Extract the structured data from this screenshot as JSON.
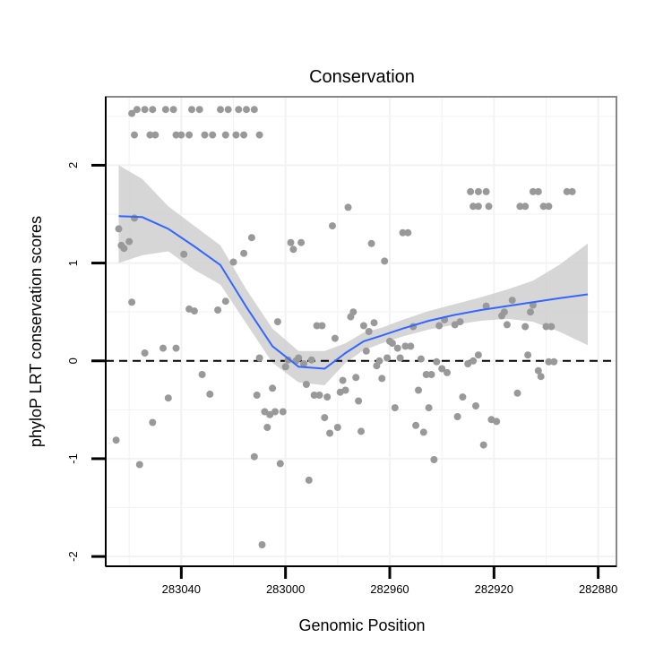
{
  "chart_data": {
    "type": "scatter",
    "title": "Conservation",
    "xlabel": "Genomic Position",
    "ylabel": "phyloP LRT conservation scores",
    "x_reversed": true,
    "xlim": [
      283069,
      282873
    ],
    "ylim": [
      -2.1,
      2.7
    ],
    "xticks": [
      283040,
      283000,
      282960,
      282920,
      282880
    ],
    "yticks": [
      -2,
      -1,
      0,
      1,
      2
    ],
    "grid": true,
    "reference_line": {
      "y": 0,
      "style": "dashed"
    },
    "colors": {
      "points": "#999999",
      "smooth_line": "#3366ff",
      "ribbon": "#cccccc",
      "grid": "#f2f2f2",
      "panel_border": "#888888",
      "axis": "#000000"
    },
    "smooth": {
      "x": [
        283064,
        283055,
        283045,
        283035,
        283025,
        283015,
        283005,
        282995,
        282985,
        282977,
        282970,
        282963,
        282955,
        282945,
        282935,
        282925,
        282915,
        282905,
        282895,
        282884
      ],
      "y": [
        1.48,
        1.47,
        1.35,
        1.17,
        0.98,
        0.55,
        0.15,
        -0.06,
        -0.08,
        0.08,
        0.2,
        0.26,
        0.33,
        0.41,
        0.47,
        0.52,
        0.56,
        0.6,
        0.64,
        0.68
      ],
      "lower": [
        1.0,
        1.08,
        1.12,
        0.93,
        0.78,
        0.38,
        -0.02,
        -0.22,
        -0.25,
        -0.02,
        0.11,
        0.18,
        0.25,
        0.32,
        0.37,
        0.41,
        0.43,
        0.4,
        0.3,
        0.16
      ],
      "upper": [
        2.0,
        1.86,
        1.58,
        1.38,
        1.18,
        0.73,
        0.33,
        0.1,
        0.1,
        0.18,
        0.29,
        0.34,
        0.42,
        0.51,
        0.58,
        0.65,
        0.73,
        0.82,
        0.98,
        1.2
      ]
    },
    "points": [
      {
        "x": 283059,
        "y": 2.53
      },
      {
        "x": 283057,
        "y": 2.57
      },
      {
        "x": 283054,
        "y": 2.57
      },
      {
        "x": 283051,
        "y": 2.57
      },
      {
        "x": 283046,
        "y": 2.57
      },
      {
        "x": 283043,
        "y": 2.57
      },
      {
        "x": 283036,
        "y": 2.57
      },
      {
        "x": 283033,
        "y": 2.57
      },
      {
        "x": 283025,
        "y": 2.57
      },
      {
        "x": 283022,
        "y": 2.57
      },
      {
        "x": 283018,
        "y": 2.57
      },
      {
        "x": 283015,
        "y": 2.57
      },
      {
        "x": 283012,
        "y": 2.57
      },
      {
        "x": 283058,
        "y": 2.31
      },
      {
        "x": 283052,
        "y": 2.31
      },
      {
        "x": 283050,
        "y": 2.31
      },
      {
        "x": 283042,
        "y": 2.31
      },
      {
        "x": 283040,
        "y": 2.31
      },
      {
        "x": 283037,
        "y": 2.31
      },
      {
        "x": 283031,
        "y": 2.31
      },
      {
        "x": 283028,
        "y": 2.31
      },
      {
        "x": 283023,
        "y": 2.31
      },
      {
        "x": 283019,
        "y": 2.31
      },
      {
        "x": 283016,
        "y": 2.31
      },
      {
        "x": 283010,
        "y": 2.31
      },
      {
        "x": 282929,
        "y": 1.73
      },
      {
        "x": 282926,
        "y": 1.73
      },
      {
        "x": 282923,
        "y": 1.73
      },
      {
        "x": 282905,
        "y": 1.73
      },
      {
        "x": 282903,
        "y": 1.73
      },
      {
        "x": 282892,
        "y": 1.73
      },
      {
        "x": 282890,
        "y": 1.73
      },
      {
        "x": 282928,
        "y": 1.58
      },
      {
        "x": 282926,
        "y": 1.58
      },
      {
        "x": 282922,
        "y": 1.58
      },
      {
        "x": 282910,
        "y": 1.58
      },
      {
        "x": 282908,
        "y": 1.58
      },
      {
        "x": 282901,
        "y": 1.58
      },
      {
        "x": 282899,
        "y": 1.58
      },
      {
        "x": 283065,
        "y": -0.81
      },
      {
        "x": 283064,
        "y": 1.35
      },
      {
        "x": 283063,
        "y": 1.18
      },
      {
        "x": 283062,
        "y": 1.15
      },
      {
        "x": 283060,
        "y": 1.22
      },
      {
        "x": 283059,
        "y": 0.6
      },
      {
        "x": 283058,
        "y": 1.46
      },
      {
        "x": 283056,
        "y": -1.06
      },
      {
        "x": 283054,
        "y": 0.08
      },
      {
        "x": 283051,
        "y": -0.63
      },
      {
        "x": 283047,
        "y": 0.13
      },
      {
        "x": 283045,
        "y": -0.38
      },
      {
        "x": 283042,
        "y": 0.13
      },
      {
        "x": 283039,
        "y": 1.09
      },
      {
        "x": 283037,
        "y": 0.53
      },
      {
        "x": 283035,
        "y": 0.51
      },
      {
        "x": 283032,
        "y": -0.14
      },
      {
        "x": 283029,
        "y": -0.34
      },
      {
        "x": 283026,
        "y": 0.52
      },
      {
        "x": 283023,
        "y": 0.61
      },
      {
        "x": 283020,
        "y": 1.01
      },
      {
        "x": 283016,
        "y": 1.1
      },
      {
        "x": 283013,
        "y": 1.26
      },
      {
        "x": 283012,
        "y": -0.98
      },
      {
        "x": 283011,
        "y": -0.35
      },
      {
        "x": 283010,
        "y": 0.03
      },
      {
        "x": 283009,
        "y": -1.88
      },
      {
        "x": 283008,
        "y": -0.52
      },
      {
        "x": 283007,
        "y": -0.68
      },
      {
        "x": 283006,
        "y": -0.55
      },
      {
        "x": 283005,
        "y": -0.28
      },
      {
        "x": 283004,
        "y": -0.52
      },
      {
        "x": 283003,
        "y": 0.4
      },
      {
        "x": 283002,
        "y": -1.05
      },
      {
        "x": 283001,
        "y": -0.52
      },
      {
        "x": 283000,
        "y": -0.06
      },
      {
        "x": 282999,
        "y": 0.01
      },
      {
        "x": 282998,
        "y": 1.21
      },
      {
        "x": 282997,
        "y": 1.14
      },
      {
        "x": 282996,
        "y": 0.0
      },
      {
        "x": 282995,
        "y": 0.03
      },
      {
        "x": 282994,
        "y": 1.21
      },
      {
        "x": 282993,
        "y": -0.03
      },
      {
        "x": 282992,
        "y": -0.24
      },
      {
        "x": 282991,
        "y": -1.22
      },
      {
        "x": 282990,
        "y": 0.01
      },
      {
        "x": 282989,
        "y": -0.35
      },
      {
        "x": 282988,
        "y": 0.36
      },
      {
        "x": 282987,
        "y": -0.35
      },
      {
        "x": 282986,
        "y": 0.36
      },
      {
        "x": 282985,
        "y": -0.58
      },
      {
        "x": 282984,
        "y": -0.37
      },
      {
        "x": 282983,
        "y": -0.74
      },
      {
        "x": 282982,
        "y": 1.38
      },
      {
        "x": 282981,
        "y": 0.23
      },
      {
        "x": 282980,
        "y": -0.68
      },
      {
        "x": 282979,
        "y": -0.32
      },
      {
        "x": 282978,
        "y": -0.2
      },
      {
        "x": 282977,
        "y": -0.3
      },
      {
        "x": 282976,
        "y": 1.57
      },
      {
        "x": 282975,
        "y": 0.45
      },
      {
        "x": 282974,
        "y": 0.5
      },
      {
        "x": 282973,
        "y": -0.17
      },
      {
        "x": 282972,
        "y": -0.41
      },
      {
        "x": 282971,
        "y": -0.72
      },
      {
        "x": 282970,
        "y": 0.36
      },
      {
        "x": 282969,
        "y": 0.1
      },
      {
        "x": 282968,
        "y": 0.3
      },
      {
        "x": 282967,
        "y": 1.2
      },
      {
        "x": 282966,
        "y": 0.39
      },
      {
        "x": 282965,
        "y": -0.05
      },
      {
        "x": 282964,
        "y": 0.0
      },
      {
        "x": 282963,
        "y": -0.18
      },
      {
        "x": 282962,
        "y": 1.02
      },
      {
        "x": 282961,
        "y": 0.03
      },
      {
        "x": 282960,
        "y": 0.2
      },
      {
        "x": 282959,
        "y": 0.18
      },
      {
        "x": 282958,
        "y": -0.48
      },
      {
        "x": 282957,
        "y": 0.13
      },
      {
        "x": 282956,
        "y": 0.03
      },
      {
        "x": 282955,
        "y": 1.31
      },
      {
        "x": 282954,
        "y": 0.15
      },
      {
        "x": 282953,
        "y": 1.31
      },
      {
        "x": 282952,
        "y": 0.15
      },
      {
        "x": 282951,
        "y": 0.35
      },
      {
        "x": 282950,
        "y": -0.66
      },
      {
        "x": 282949,
        "y": -0.3
      },
      {
        "x": 282948,
        "y": 0.02
      },
      {
        "x": 282947,
        "y": -0.73
      },
      {
        "x": 282946,
        "y": -0.14
      },
      {
        "x": 282945,
        "y": -0.48
      },
      {
        "x": 282944,
        "y": -0.14
      },
      {
        "x": 282943,
        "y": -1.01
      },
      {
        "x": 282942,
        "y": -0.01
      },
      {
        "x": 282941,
        "y": 0.36
      },
      {
        "x": 282940,
        "y": -0.08
      },
      {
        "x": 282939,
        "y": 0.42
      },
      {
        "x": 282938,
        "y": -0.12
      },
      {
        "x": 282935,
        "y": 0.37
      },
      {
        "x": 282934,
        "y": -0.57
      },
      {
        "x": 282933,
        "y": 0.4
      },
      {
        "x": 282932,
        "y": -0.37
      },
      {
        "x": 282930,
        "y": -0.03
      },
      {
        "x": 282928,
        "y": 0.0
      },
      {
        "x": 282927,
        "y": -0.46
      },
      {
        "x": 282926,
        "y": 0.06
      },
      {
        "x": 282924,
        "y": -0.86
      },
      {
        "x": 282923,
        "y": 0.56
      },
      {
        "x": 282921,
        "y": -0.6
      },
      {
        "x": 282919,
        "y": -0.62
      },
      {
        "x": 282917,
        "y": 0.46
      },
      {
        "x": 282916,
        "y": 0.5
      },
      {
        "x": 282915,
        "y": 0.37
      },
      {
        "x": 282913,
        "y": 0.62
      },
      {
        "x": 282911,
        "y": -0.33
      },
      {
        "x": 282908,
        "y": 0.35
      },
      {
        "x": 282907,
        "y": 0.06
      },
      {
        "x": 282906,
        "y": 0.5
      },
      {
        "x": 282905,
        "y": 0.57
      },
      {
        "x": 282903,
        "y": -0.1
      },
      {
        "x": 282902,
        "y": -0.16
      },
      {
        "x": 282900,
        "y": 0.35
      },
      {
        "x": 282899,
        "y": -0.01
      },
      {
        "x": 282898,
        "y": 0.35
      },
      {
        "x": 282897,
        "y": -0.01
      }
    ]
  }
}
